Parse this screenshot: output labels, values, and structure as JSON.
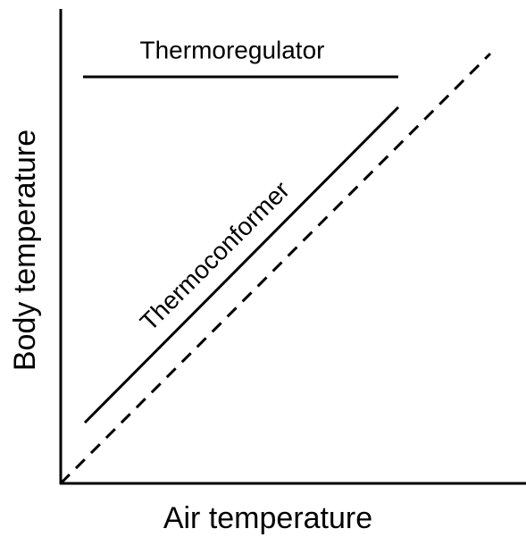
{
  "axes": {
    "x_label": "Air temperature",
    "y_label": "Body temperature"
  },
  "lines": [
    {
      "label": "Thermoregulator"
    },
    {
      "label": "Thermoconformer"
    }
  ]
}
